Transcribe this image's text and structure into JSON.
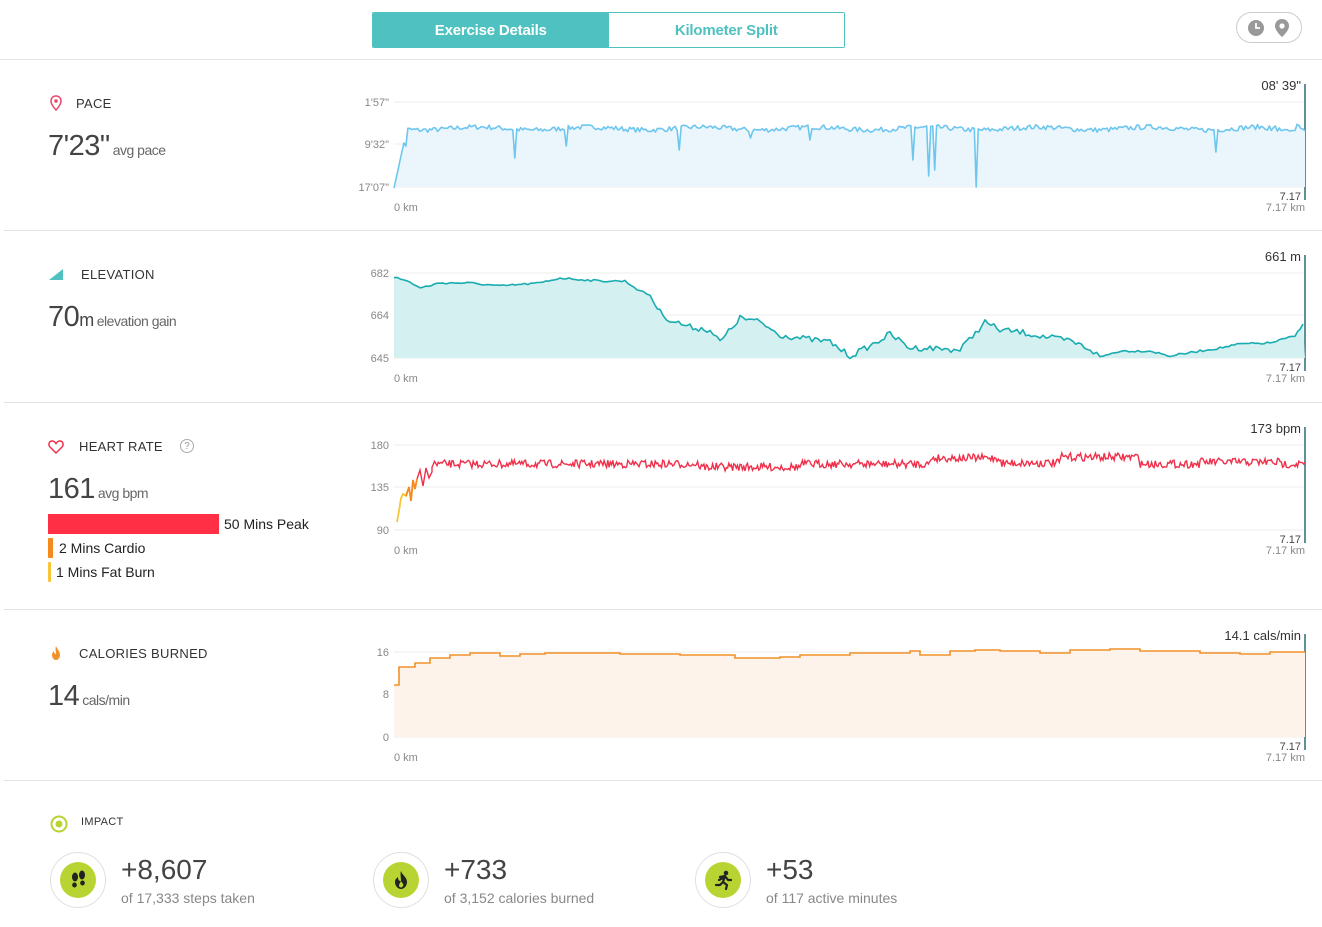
{
  "tabs": {
    "exercise_details": "Exercise Details",
    "km_split": "Kilometer Split"
  },
  "toggle": {
    "icons": [
      "clock-icon",
      "map-pin-icon"
    ]
  },
  "pace": {
    "title": "PACE",
    "value": "7'23\"",
    "unit": "avg pace",
    "y_ticks": [
      "1'57\"",
      "9'32\"",
      "17'07\""
    ],
    "current": "08' 39\"",
    "x_start": "0 km",
    "x_end": "7.17 km",
    "marker": "7.17",
    "color": "#6ec6ee",
    "fill": "#eaf6fc"
  },
  "elevation": {
    "title": "ELEVATION",
    "value": "70",
    "value_unit": "m",
    "unit": "elevation gain",
    "y_ticks": [
      "682",
      "664",
      "645"
    ],
    "current": "661 m",
    "x_start": "0 km",
    "x_end": "7.17 km",
    "marker": "7.17",
    "color": "#1aacb0",
    "fill": "#d4f0f1"
  },
  "heart_rate": {
    "title": "HEART RATE",
    "help": "?",
    "value": "161",
    "unit": "avg bpm",
    "y_ticks": [
      "180",
      "135",
      "90"
    ],
    "current": "173 bpm",
    "x_start": "0 km",
    "x_end": "7.17 km",
    "marker": "7.17",
    "color": "#f0304a",
    "zones": [
      {
        "label": "50 Mins Peak",
        "color": "#ff3046",
        "minutes": 50
      },
      {
        "label": "2 Mins Cardio",
        "color": "#f58a1f",
        "minutes": 2
      },
      {
        "label": "1 Mins Fat Burn",
        "color": "#f8c537",
        "minutes": 1
      }
    ]
  },
  "calories": {
    "title": "CALORIES BURNED",
    "value": "14",
    "unit": "cals/min",
    "y_ticks": [
      "16",
      "8",
      "0"
    ],
    "current": "14.1 cals/min",
    "x_start": "0 km",
    "x_end": "7.17 km",
    "marker": "7.17",
    "color": "#f0912a",
    "fill": "#fdf3ea"
  },
  "impact": {
    "title": "IMPACT",
    "items": [
      {
        "value": "+8,607",
        "label": "of 17,333 steps taken",
        "icon": "footsteps-icon"
      },
      {
        "value": "+733",
        "label": "of 3,152 calories burned",
        "icon": "flame-icon"
      },
      {
        "value": "+53",
        "label": "of 117 active minutes",
        "icon": "runner-icon"
      }
    ],
    "accent": "#b8d432"
  }
}
